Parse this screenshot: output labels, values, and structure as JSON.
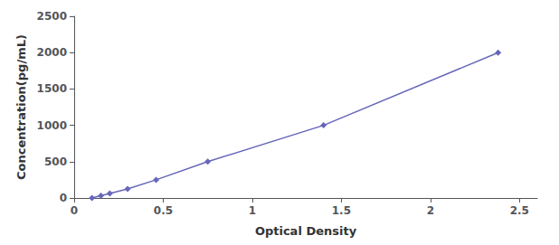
{
  "chart_data": {
    "type": "line",
    "x": [
      0.1,
      0.15,
      0.2,
      0.3,
      0.46,
      0.75,
      1.4,
      2.38
    ],
    "values": [
      0,
      31.25,
      62.5,
      125,
      250,
      500,
      1000,
      2000
    ],
    "color": "#6666bb",
    "marker": "diamond",
    "xlabel": "Optical Density",
    "ylabel": "Concentration(pg/mL)",
    "xlim": [
      0,
      2.6
    ],
    "ylim": [
      0,
      2500
    ],
    "xticks": [
      0,
      0.5,
      1,
      1.5,
      2,
      2.5
    ],
    "yticks": [
      0,
      500,
      1000,
      1500,
      2000,
      2500
    ],
    "grid": false
  }
}
